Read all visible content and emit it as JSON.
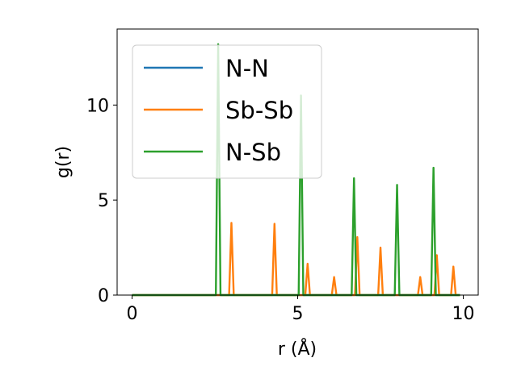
{
  "chart_data": {
    "type": "line",
    "xlabel": "r (Å)",
    "ylabel": "g(r)",
    "xlim": [
      -0.45,
      10.45
    ],
    "ylim": [
      0,
      14.0
    ],
    "xticks": [
      0,
      5,
      10
    ],
    "yticks": [
      0,
      5,
      10
    ],
    "grid": false,
    "legend_position": "top-left",
    "series": [
      {
        "name": "N-N",
        "color": "#1f77b4",
        "peaks": []
      },
      {
        "name": "Sb-Sb",
        "color": "#ff7f0e",
        "peaks": [
          {
            "r": 3.0,
            "g": 3.8
          },
          {
            "r": 4.3,
            "g": 3.75
          },
          {
            "r": 5.3,
            "g": 1.65
          },
          {
            "r": 6.1,
            "g": 0.95
          },
          {
            "r": 6.8,
            "g": 3.05
          },
          {
            "r": 7.5,
            "g": 2.5
          },
          {
            "r": 8.7,
            "g": 0.95
          },
          {
            "r": 9.2,
            "g": 2.1
          },
          {
            "r": 9.7,
            "g": 1.5
          }
        ]
      },
      {
        "name": "N-Sb",
        "color": "#2ca02c",
        "peaks": [
          {
            "r": 2.6,
            "g": 13.2
          },
          {
            "r": 5.1,
            "g": 10.5
          },
          {
            "r": 6.7,
            "g": 6.15
          },
          {
            "r": 8.0,
            "g": 5.8
          },
          {
            "r": 9.1,
            "g": 6.7
          }
        ]
      }
    ]
  }
}
